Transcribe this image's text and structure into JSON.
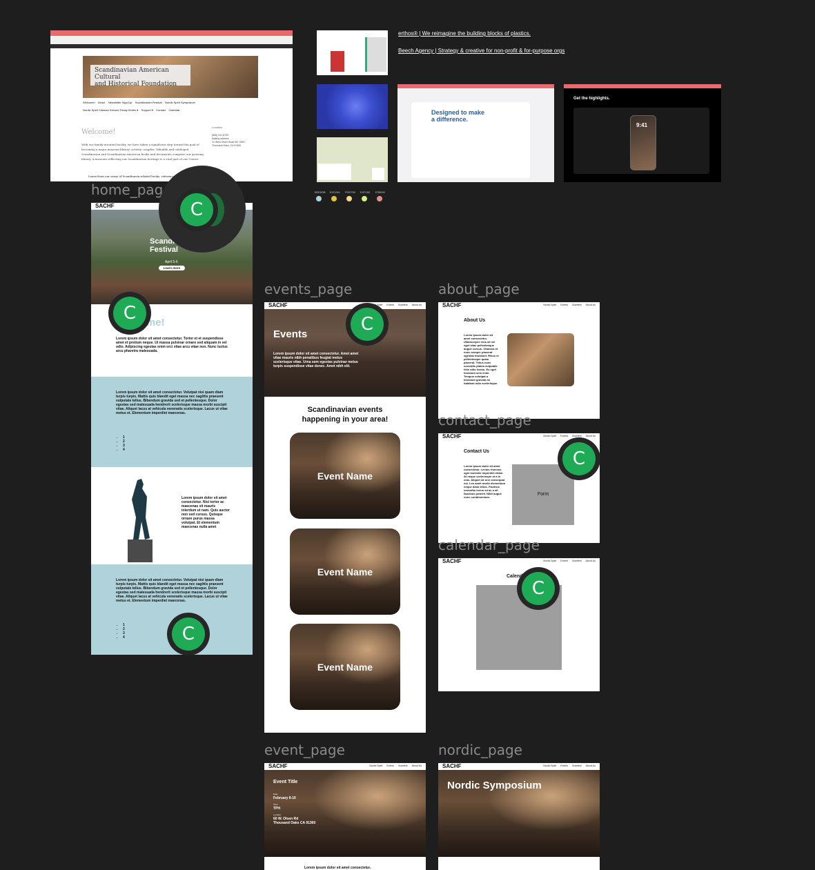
{
  "ref_browser": {
    "site_title_line1": "Scandinavian American Cultural",
    "site_title_line2": "and Historical Foundation",
    "nav_row1": "Welcome!    About    Newsletter Sign-Up    Scandinavian Festival    Nordic Spirit Symposium",
    "nav_row2": "Nordic Spirit Classics Second Friday Series ▾    Support ▾    Contact    Calendar",
    "welcome": "Welcome!",
    "body": "With our family-oriented facility, we have taken a significant step toward the goal of becoming a major museum library- activity complex. Valuable and cataloged Scandinavian and Scandinavian-American books and documents comprise our growing library. A museum reflecting our Scandinavian heritage is a vital part of our Center.",
    "bullet": "Learn from our array of Scandinavia-related books, reference",
    "sidebar_heading": "Location",
    "sidebar_lines": [
      "(805) 241-8793",
      "Mailing address",
      "10 West Olsen Road MC 3000",
      "Thousand Oaks, CA 91360"
    ]
  },
  "links": {
    "erthos": "erthos® | We reimagine the building blocks of plastics.",
    "beech": "Beech Agency | Strategy & creative for non-profit & for-purpose orgs"
  },
  "swatches": [
    {
      "label": "B0D2DB",
      "color": "#b0d2db"
    },
    {
      "label": "E2C244",
      "color": "#e2c244"
    },
    {
      "label": "FDD790",
      "color": "#fdd790"
    },
    {
      "label": "D1F182",
      "color": "#d1f182"
    },
    {
      "label": "E39090",
      "color": "#e39090"
    }
  ],
  "ref_apple": {
    "heading1": "Designed to make",
    "heading2": "a difference.",
    "highlights": "Get the highlights.",
    "time": "9:41"
  },
  "labels": {
    "home": "home_page",
    "events": "events_page",
    "about": "about_page",
    "contact": "contact_page",
    "calendar": "calendar_page",
    "event": "event_page",
    "nordic": "nordic_page"
  },
  "nav": {
    "brand": "SACHF",
    "links": [
      "Nordic Spirit",
      "Events",
      "Scanfest",
      "About Us"
    ]
  },
  "home": {
    "hero_title": "Scandinavian Festival",
    "hero_date": "April 5-6",
    "hero_button": "Learn more",
    "welcome": "Welcome!",
    "intro": "Lorem ipsum dolor sit amet consectetur. Tortor et et suspendisse amet et pretium neque. Ut massa pulvinar ornare sed aliquam in vel odio. Adipiscing egestas enim orci vitae arcu vitae non. Nunc luctus arcu pharetra malesuada.",
    "block1": "Lorem ipsum dolor sit amet consectetur. Volutpat nisi quam diam turpis turpis. Mattis quis blandit eget massa nec sagittis praesent vulputate tellus. Bibendum gravida sed et pellentesque. Dolor egestas sed malesuada hendrerit scelerisque massa morbi suscipit vitae. Aliquet lacus at vehicula venenatis scelerisque. Lacus ut vitae metus et. Elementum imperdiet maecenas.",
    "list": [
      "1",
      "2",
      "3",
      "4"
    ],
    "statue_text": "Lorem ipsum dolor sit amet consectetur. Nisi tortor ac maecenas sit mauris interdum ut nam. Quis auctor non sed cursus. Quisque ornare purus massa volutpat. Et elementum maecenas nulla amet",
    "block2": "Lorem ipsum dolor sit amet consectetur. Volutpat nisi quam diam turpis turpis. Mattis quis blandit eget massa nec sagittis praesent vulputate tellus. Bibendum gravida sed et pellentesque. Dolor egestas sed malesuada hendrerit scelerisque massa morbi suscipit vitae. Aliquet lacus at vehicula venenatis scelerisque. Lacus ut vitae metus et. Elementum imperdiet maecenas."
  },
  "events": {
    "title": "Events",
    "hero_text": "Lorem ipsum dolor sit amet consectetur. Amet amet vitae mauris nibh penatibus feugiat metus scelerisque vitae. Urna sem egestas pulvinar metus turpis suspendisse vitae donec. Amet nibh elit.",
    "subtitle": "Scandinavian events happening in your area!",
    "cards": [
      "Event Name",
      "Event Name",
      "Event Name"
    ]
  },
  "about": {
    "title": "About Us",
    "text": "Lorem ipsum dolor sit amet consectetur. Ullamcorper eros sit vel eget vitae pellentesque augue cursus. Vivamus et nunc semper placerat egestas tincidunt. Risus et pellentesque quam placerat. Tellus nunc convallis platea vulputate felis odio lectus. Eu eget tincidunt sem enim. Tempus volutpat a tincidunt gravida mi habitant odio scelerisque."
  },
  "contact": {
    "title": "Contact Us",
    "text": "Lorem ipsum dolor sit amet consectetur. Lectus rhoncus eget molestie imperdiet etiam. At neque scelerisque ut a in cras. Aliquet sit orci consequat est. Leo amet morbi elementum neque diam tellus. Facilisis convallis lorem sit ac a sit faucibus potenti. Nibh augue nunc condimentum.",
    "form": "Form"
  },
  "calendar": {
    "title": "Calendar"
  },
  "event": {
    "title": "Event Title",
    "date_label": "Date",
    "date": "February 8-10",
    "time_label": "Time",
    "time": "TPH",
    "loc_label": "Location",
    "loc1": "60 W. Olsen Rd",
    "loc2": "Thousand Oaks CA 91360",
    "body": "Lorem ipsum dolor sit amet consectetur."
  },
  "nordic": {
    "title": "Nordic Symposium"
  },
  "comment_badge": "C"
}
